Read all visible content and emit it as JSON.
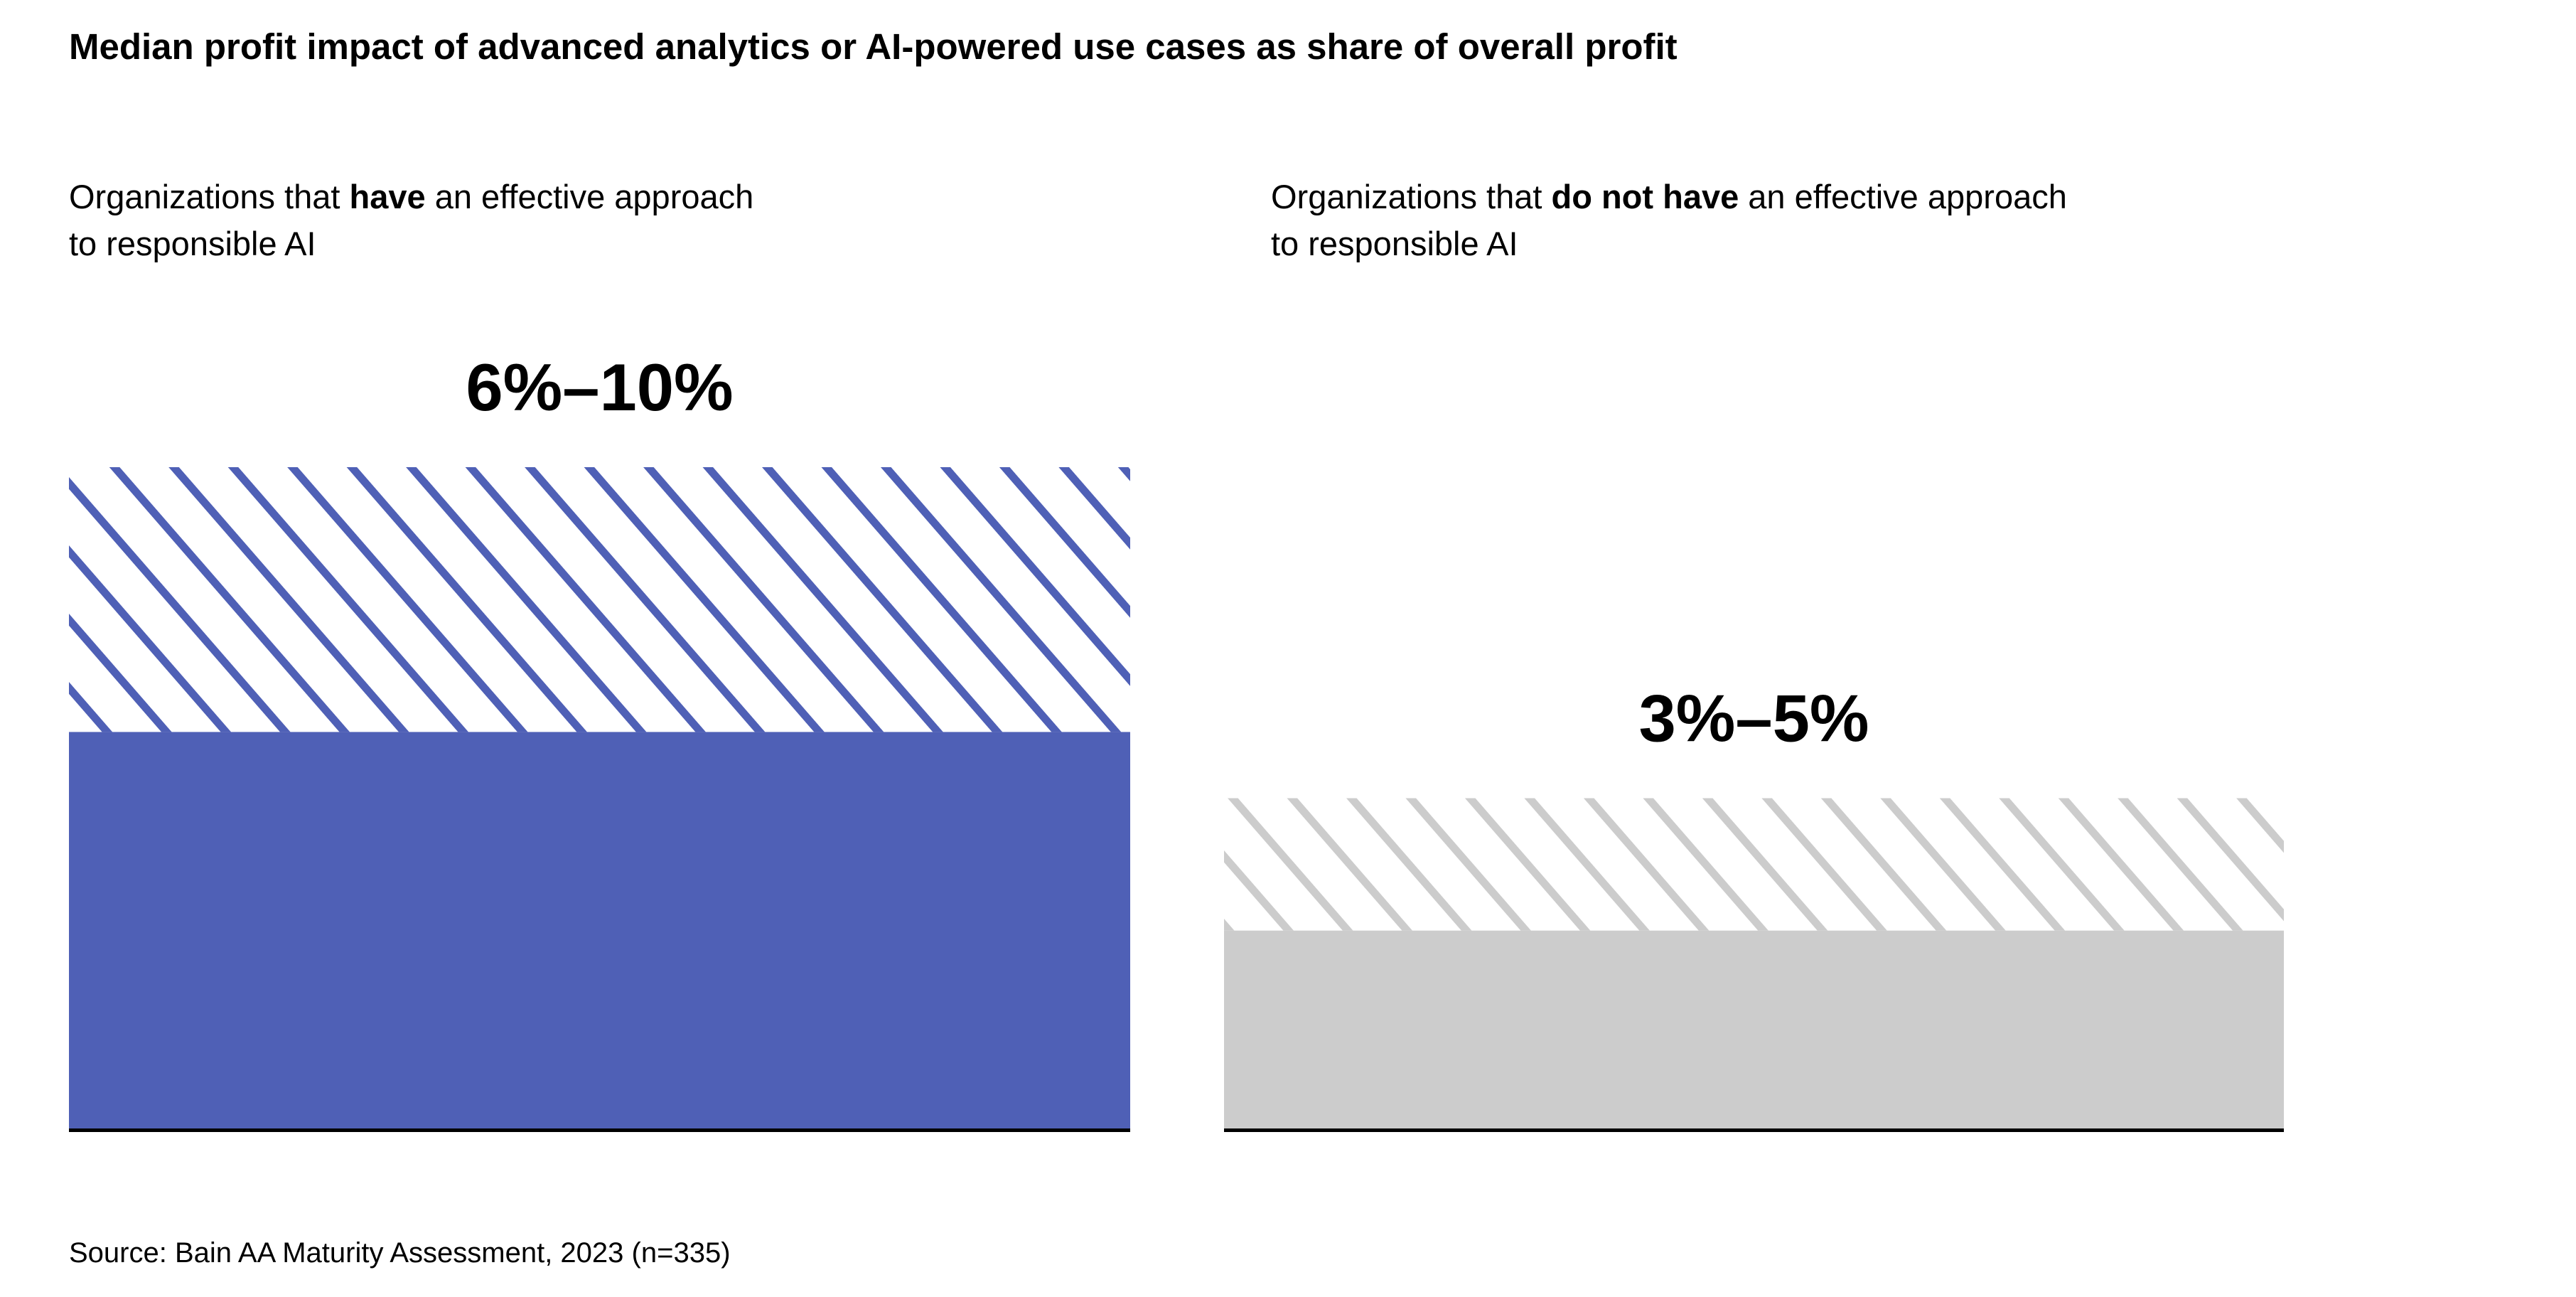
{
  "title": "Median profit impact of advanced analytics or AI-powered use cases as share of overall profit",
  "panels": [
    {
      "prefix": "Organizations that ",
      "bold": "have",
      "suffix": " an effective approach",
      "line2": "to responsible AI"
    },
    {
      "prefix": "Organizations that ",
      "bold": "do not have",
      "suffix": " an effective approach",
      "line2": "to responsible AI"
    }
  ],
  "source": "Source: Bain AA Maturity Assessment, 2023 (n=335)",
  "chart_data": {
    "type": "bar",
    "title": "Median profit impact of advanced analytics or AI-powered use cases as share of overall profit",
    "categories": [
      "Organizations that have an effective approach to responsible AI",
      "Organizations that do not have an effective approach to responsible AI"
    ],
    "ranges": [
      {
        "low": 6,
        "high": 10,
        "label": "6%–10%",
        "color": "#4f60b6",
        "hatch_color": "#4f60b6"
      },
      {
        "low": 3,
        "high": 5,
        "label": "3%–5%",
        "color": "#cccccc",
        "hatch_color": "#cccccc"
      }
    ],
    "unit": "%",
    "ylim": [
      0,
      10
    ],
    "encoding": "solid fill up to low bound, hatched fill from low to high bound",
    "grid": false,
    "axis_line_color": "#000000"
  }
}
